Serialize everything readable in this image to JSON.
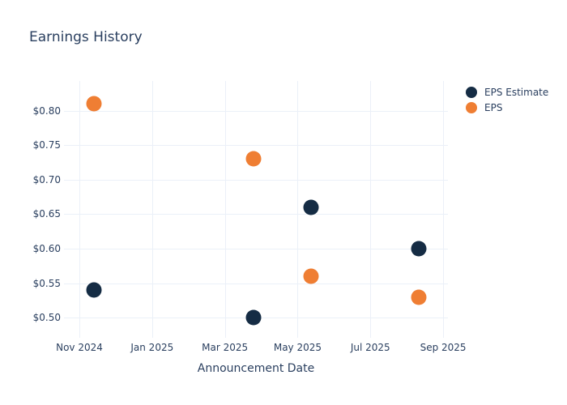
{
  "chart_data": {
    "type": "scatter",
    "title": "Earnings History",
    "xlabel": "Announcement Date",
    "ylabel": "",
    "grid": true,
    "legend_position": "outside-top-right",
    "background_color": "#ffffff",
    "grid_color": "#ebf0f8",
    "text_color": "#2a3f5f",
    "x_axis": {
      "ticks": [
        {
          "date": "2024-11-01",
          "label": "Nov 2024"
        },
        {
          "date": "2025-01-01",
          "label": "Jan 2025"
        },
        {
          "date": "2025-03-01",
          "label": "Mar 2025"
        },
        {
          "date": "2025-05-01",
          "label": "May 2025"
        },
        {
          "date": "2025-07-01",
          "label": "Jul 2025"
        },
        {
          "date": "2025-09-01",
          "label": "Sep 2025"
        }
      ],
      "range_months_from_2024_11_01": [
        -0.423,
        10.132
      ]
    },
    "y_axis": {
      "ticks": [
        {
          "value": 0.5,
          "label": "$0.50"
        },
        {
          "value": 0.55,
          "label": "$0.55"
        },
        {
          "value": 0.6,
          "label": "$0.60"
        },
        {
          "value": 0.65,
          "label": "$0.65"
        },
        {
          "value": 0.7,
          "label": "$0.70"
        },
        {
          "value": 0.75,
          "label": "$0.75"
        },
        {
          "value": 0.8,
          "label": "$0.80"
        }
      ],
      "range": [
        0.4706,
        0.8435
      ]
    },
    "series": [
      {
        "name": "EPS Estimate",
        "color": "#152c44",
        "points": [
          {
            "date": "2024-11-13",
            "value": 0.54
          },
          {
            "date": "2025-03-25",
            "value": 0.5
          },
          {
            "date": "2025-05-12",
            "value": 0.66
          },
          {
            "date": "2025-08-11",
            "value": 0.6
          }
        ]
      },
      {
        "name": "EPS",
        "color": "#ef7e33",
        "points": [
          {
            "date": "2024-11-13",
            "value": 0.81
          },
          {
            "date": "2025-03-25",
            "value": 0.73
          },
          {
            "date": "2025-05-12",
            "value": 0.56
          },
          {
            "date": "2025-08-11",
            "value": 0.53
          }
        ]
      }
    ]
  }
}
